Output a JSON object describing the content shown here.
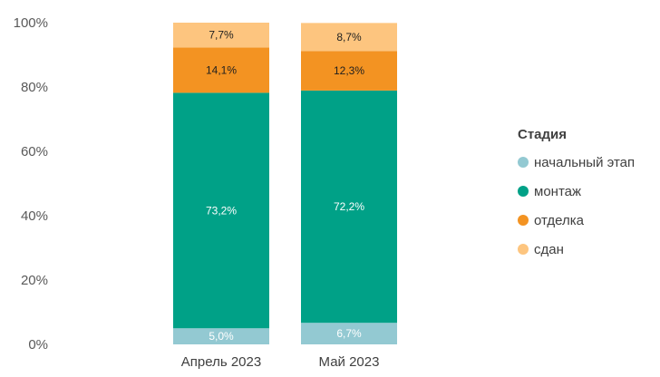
{
  "chart_data": {
    "type": "bar",
    "stacked": true,
    "percent": true,
    "categories": [
      "Апрель 2023",
      "Май 2023"
    ],
    "series": [
      {
        "name": "начальный этап",
        "color": "#93c9d2",
        "values": [
          5.0,
          6.7
        ],
        "labels": [
          "5,0%",
          "6,7%"
        ],
        "label_color": "#ffffff"
      },
      {
        "name": "монтаж",
        "color": "#00a187",
        "values": [
          73.2,
          72.2
        ],
        "labels": [
          "73,2%",
          "72,2%"
        ],
        "label_color": "#ffffff"
      },
      {
        "name": "отделка",
        "color": "#f39322",
        "values": [
          14.1,
          12.3
        ],
        "labels": [
          "14,1%",
          "12,3%"
        ],
        "label_color": "#1f1f1f"
      },
      {
        "name": "сдан",
        "color": "#fdc57f",
        "values": [
          7.7,
          8.7
        ],
        "labels": [
          "7,7%",
          "8,7%"
        ],
        "label_color": "#1f1f1f"
      }
    ],
    "ylim": [
      0,
      100
    ],
    "yticks": [
      "0%",
      "20%",
      "40%",
      "60%",
      "80%",
      "100%"
    ],
    "grid": false,
    "legend_title": "Стадия",
    "legend_position": "right"
  }
}
